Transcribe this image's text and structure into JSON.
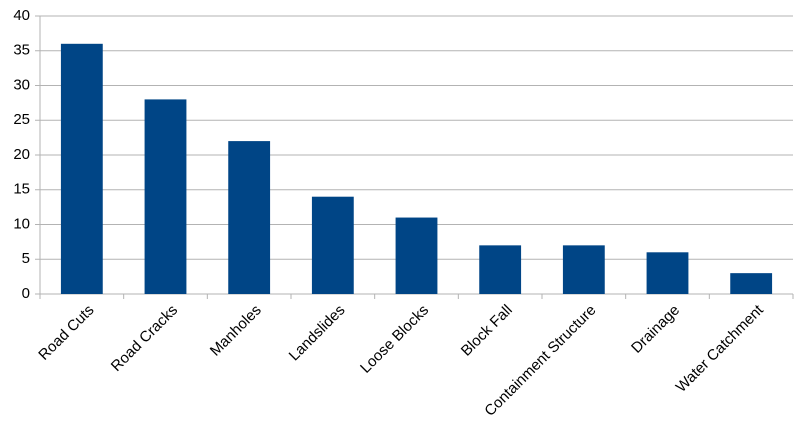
{
  "chart_data": {
    "type": "bar",
    "categories": [
      "Road Cuts",
      "Road Cracks",
      "Manholes",
      "Landslides",
      "Loose Blocks",
      "Block Fall",
      "Containment Structure",
      "Drainage",
      "Water Catchment"
    ],
    "values": [
      36,
      28,
      22,
      14,
      11,
      7,
      7,
      6,
      3
    ],
    "color": "#004586",
    "ylim": [
      0,
      40
    ],
    "yticks": [
      0,
      5,
      10,
      15,
      20,
      25,
      30,
      35,
      40
    ],
    "grid": true
  }
}
